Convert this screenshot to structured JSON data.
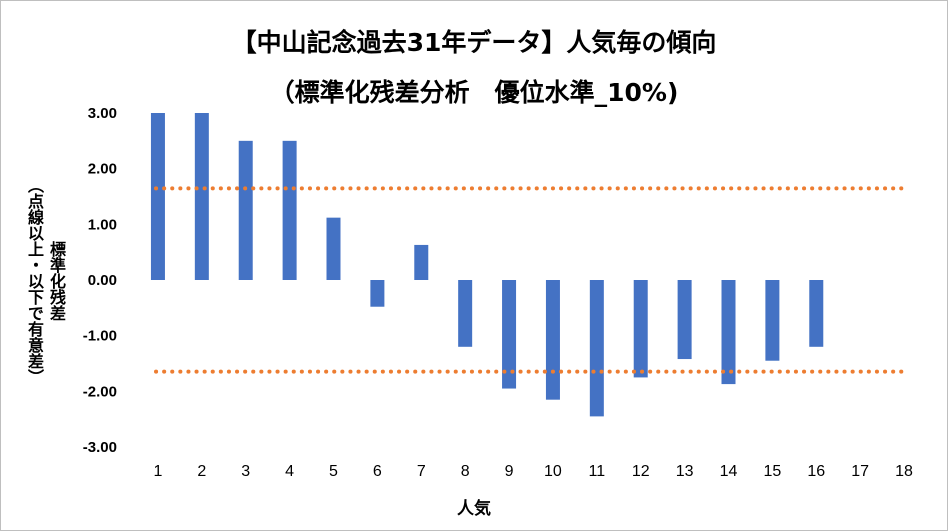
{
  "chart_data": {
    "type": "bar",
    "title_line1": "【中山記念過去31年データ】人気毎の傾向",
    "title_line2": "（標準化残差分析　優位水準_10%)",
    "xlabel": "人気",
    "ylabel": "標準化残差\n（点線以上・以下で有意差）",
    "categories": [
      "1",
      "2",
      "3",
      "4",
      "5",
      "6",
      "7",
      "8",
      "9",
      "10",
      "11",
      "12",
      "13",
      "14",
      "15",
      "16",
      "17",
      "18"
    ],
    "values": [
      3.0,
      3.0,
      2.5,
      2.5,
      1.12,
      -0.48,
      0.63,
      -1.2,
      -1.95,
      -2.15,
      -2.45,
      -1.75,
      -1.42,
      -1.87,
      -1.45,
      -1.2,
      null,
      null
    ],
    "ylim": [
      -3.0,
      3.0
    ],
    "yticks": [
      "3.00",
      "2.00",
      "1.00",
      "0.00",
      "-1.00",
      "-2.00",
      "-3.00"
    ],
    "threshold_upper": 1.645,
    "threshold_lower": -1.645,
    "bar_color": "#4472c4",
    "threshold_color": "#ed7d31",
    "grid": false
  }
}
